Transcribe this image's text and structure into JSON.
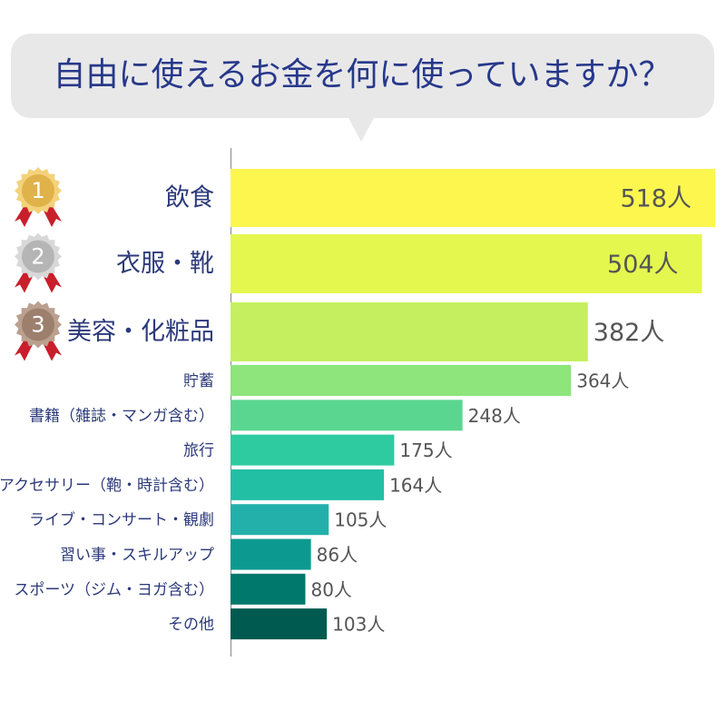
{
  "chart_data": {
    "type": "bar",
    "orientation": "horizontal",
    "title": "自由に使えるお金を何に使っていますか？",
    "categories": [
      "飲食",
      "衣服・靴",
      "美容・化粧品",
      "貯蓄",
      "書籍（雑誌・マンガ含む）",
      "旅行",
      "アクセサリー（鞄・時計含む）",
      "ライブ・コンサート・観劇",
      "習い事・スキルアップ",
      "スポーツ（ジム・ヨガ含む）",
      "その他"
    ],
    "values": [
      518,
      504,
      382,
      364,
      248,
      175,
      164,
      105,
      86,
      80,
      103
    ],
    "value_labels": [
      "518人",
      "504人",
      "382人",
      "364人",
      "248人",
      "175人",
      "164人",
      "105人",
      "86人",
      "80人",
      "103人"
    ],
    "colors": [
      "#fdf64f",
      "#e4f74f",
      "#c6ef5f",
      "#8de57b",
      "#5bd690",
      "#2ecba1",
      "#22bfa5",
      "#24b0aa",
      "#0c9a90",
      "#00786c",
      "#005a4f"
    ],
    "ranks": [
      1,
      2,
      3
    ]
  }
}
